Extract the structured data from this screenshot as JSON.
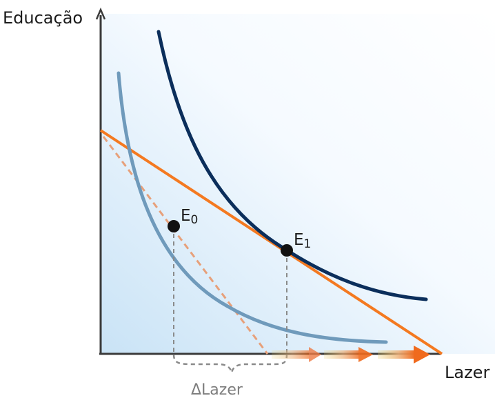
{
  "axes": {
    "y_label": "Educação",
    "x_label": "Lazer"
  },
  "points": {
    "e0_label": "E",
    "e0_subscript": "0",
    "e1_label": "E",
    "e1_subscript": "1"
  },
  "annotation": {
    "delta_label": "ΔLazer"
  },
  "colors": {
    "background_gradient_light": "#ffffff",
    "background_gradient_blue": "#c9e3f6",
    "axis": "#3a3a3a",
    "indifference_low": "#6f9abb",
    "indifference_high": "#0b2e5b",
    "budget_line": "#f47920",
    "budget_line_old": "#e7a07a",
    "guide": "#8a8a8a",
    "points": "#111111",
    "arrow_start": "#e9c36d",
    "arrow_end": "#f06a1d"
  }
}
